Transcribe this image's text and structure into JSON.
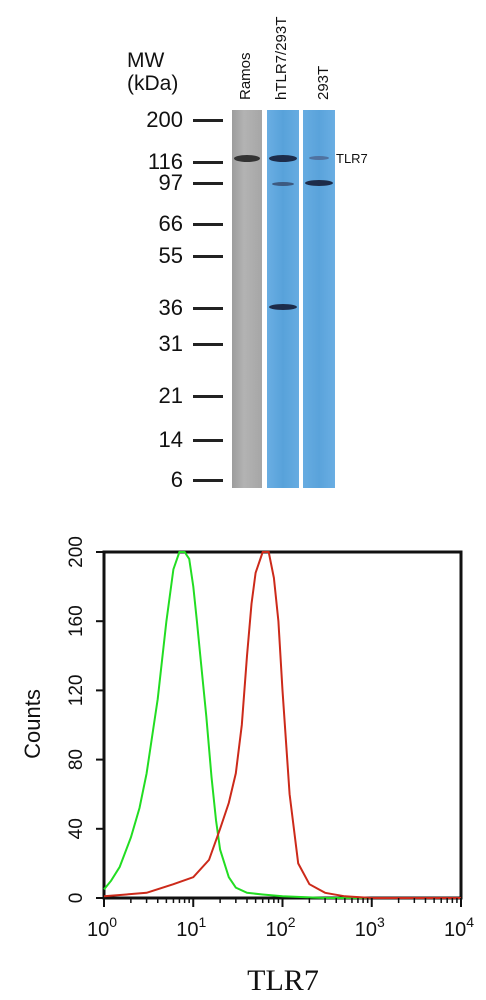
{
  "blot": {
    "mw_title": "MW\n(kDa)",
    "mw_title_line1": "MW",
    "mw_title_line2": "(kDa)",
    "mw_markers": [
      "200",
      "116",
      "97",
      "66",
      "55",
      "36",
      "31",
      "21",
      "14",
      "6"
    ],
    "lanes": [
      "Ramos",
      "hTLR7/293T",
      "293T"
    ],
    "band_label": "TLR7",
    "colors": {
      "ramos_lane": "#a9a9a9",
      "blue_lane": "#5ea6dd",
      "band": "#1d2c4a"
    }
  },
  "chart_data": {
    "type": "line",
    "xlabel": "TLR7",
    "ylabel": "Counts",
    "x_scale": "log",
    "xlim": [
      1,
      10000
    ],
    "ylim": [
      0,
      200
    ],
    "x_ticks": [
      {
        "base": "10",
        "exp": "0"
      },
      {
        "base": "10",
        "exp": "1"
      },
      {
        "base": "10",
        "exp": "2"
      },
      {
        "base": "10",
        "exp": "3"
      },
      {
        "base": "10",
        "exp": "4"
      }
    ],
    "y_ticks": [
      "0",
      "40",
      "80",
      "120",
      "160",
      "200"
    ],
    "grid": false,
    "series": [
      {
        "color": "#22dd22",
        "x": [
          1,
          1.2,
          1.5,
          2,
          2.5,
          3,
          4,
          5,
          6,
          7,
          8,
          9,
          10,
          11,
          12,
          14,
          16,
          18,
          20,
          25,
          30,
          40,
          60,
          100,
          300,
          1000,
          10000
        ],
        "y": [
          5,
          10,
          18,
          35,
          52,
          72,
          115,
          160,
          190,
          200,
          200,
          196,
          180,
          160,
          140,
          105,
          70,
          45,
          28,
          12,
          6,
          3,
          2,
          1,
          0,
          0,
          0
        ]
      },
      {
        "color": "#cc2a1a",
        "x": [
          1,
          3,
          6,
          10,
          15,
          20,
          25,
          30,
          35,
          40,
          45,
          50,
          60,
          70,
          80,
          90,
          100,
          120,
          150,
          200,
          300,
          500,
          1000,
          10000
        ],
        "y": [
          1,
          3,
          8,
          12,
          22,
          40,
          55,
          72,
          100,
          140,
          170,
          188,
          200,
          200,
          185,
          160,
          120,
          60,
          20,
          8,
          3,
          1,
          0,
          0
        ]
      }
    ]
  }
}
